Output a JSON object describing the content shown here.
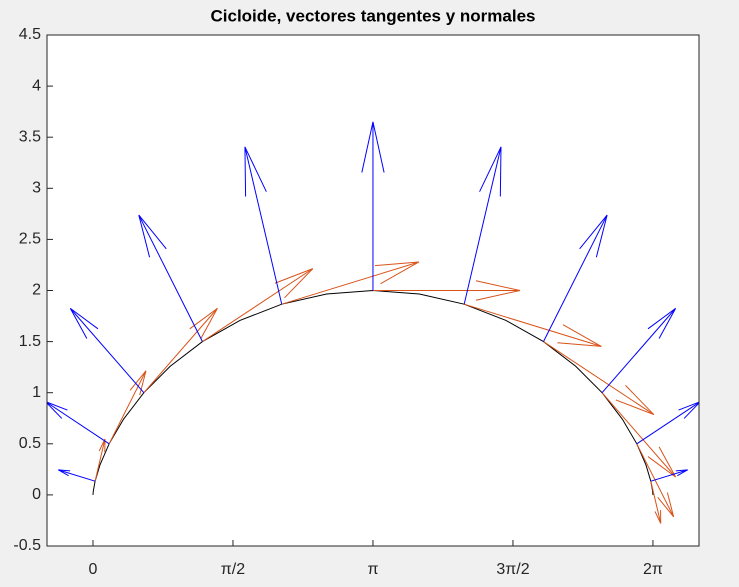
{
  "chart_data": {
    "type": "quiver",
    "title": "Cicloide, vectores tangentes y normales",
    "xlim": [
      -0.516,
      6.8
    ],
    "ylim": [
      -0.5,
      4.5
    ],
    "xticks": [
      0,
      {
        "value": 1.5708,
        "label": "π/2"
      },
      {
        "value": 3.1416,
        "label": "π"
      },
      {
        "value": 4.7124,
        "label": "3π/2"
      },
      {
        "value": 6.2832,
        "label": "2π"
      }
    ],
    "yticks": [
      -0.5,
      0,
      0.5,
      1,
      1.5,
      2,
      2.5,
      3,
      3.5,
      4,
      4.5
    ],
    "curve": {
      "color": "#000000",
      "x": [
        0,
        0.003,
        0.0236,
        0.0783,
        0.1812,
        0.3431,
        0.5708,
        0.8667,
        1.2284,
        1.6491,
        2.118,
        2.621,
        3.1416,
        3.6622,
        4.1652,
        4.6341,
        5.0548,
        5.4165,
        5.7124,
        5.9401,
        6.102,
        6.2049,
        6.2596,
        6.2802,
        6.2832
      ],
      "y": [
        0,
        0.0341,
        0.134,
        0.2929,
        0.5,
        0.7412,
        1,
        1.2588,
        1.5,
        1.7071,
        1.866,
        1.9659,
        2,
        1.9659,
        1.866,
        1.7071,
        1.5,
        1.2588,
        1,
        0.7412,
        0.5,
        0.2929,
        0.134,
        0.0341,
        0
      ]
    },
    "vectors": [
      {
        "color": "#d95319",
        "x": [
          0.0236,
          0.1812,
          0.5708,
          1.2284,
          2.118,
          3.1416,
          4.1652,
          5.0548,
          5.7124,
          6.102,
          6.2596
        ],
        "y": [
          0.134,
          0.5,
          1,
          1.5,
          1.866,
          2,
          1.866,
          1.5,
          1,
          0.5,
          0.134
        ],
        "u": [
          0.111,
          0.413,
          0.825,
          1.238,
          1.539,
          1.65,
          1.539,
          1.238,
          0.825,
          0.413,
          0.111
        ],
        "v": [
          0.413,
          0.714,
          0.825,
          0.714,
          0.413,
          0,
          -0.413,
          -0.714,
          -0.825,
          -0.714,
          -0.413
        ]
      },
      {
        "color": "#0000ff",
        "x": [
          0.0236,
          0.1812,
          0.5708,
          1.2284,
          2.118,
          3.1416,
          4.1652,
          5.0548,
          5.7124,
          6.102,
          6.2596
        ],
        "y": [
          0.134,
          0.5,
          1,
          1.5,
          1.866,
          2,
          1.866,
          1.5,
          1,
          0.5,
          0.134
        ],
        "u": [
          -0.413,
          -0.714,
          -0.825,
          -0.714,
          -0.413,
          0,
          0.413,
          0.714,
          0.825,
          0.714,
          0.413
        ],
        "v": [
          0.111,
          0.413,
          0.825,
          1.238,
          1.539,
          1.65,
          1.539,
          1.238,
          0.825,
          0.413,
          0.111
        ]
      }
    ]
  }
}
